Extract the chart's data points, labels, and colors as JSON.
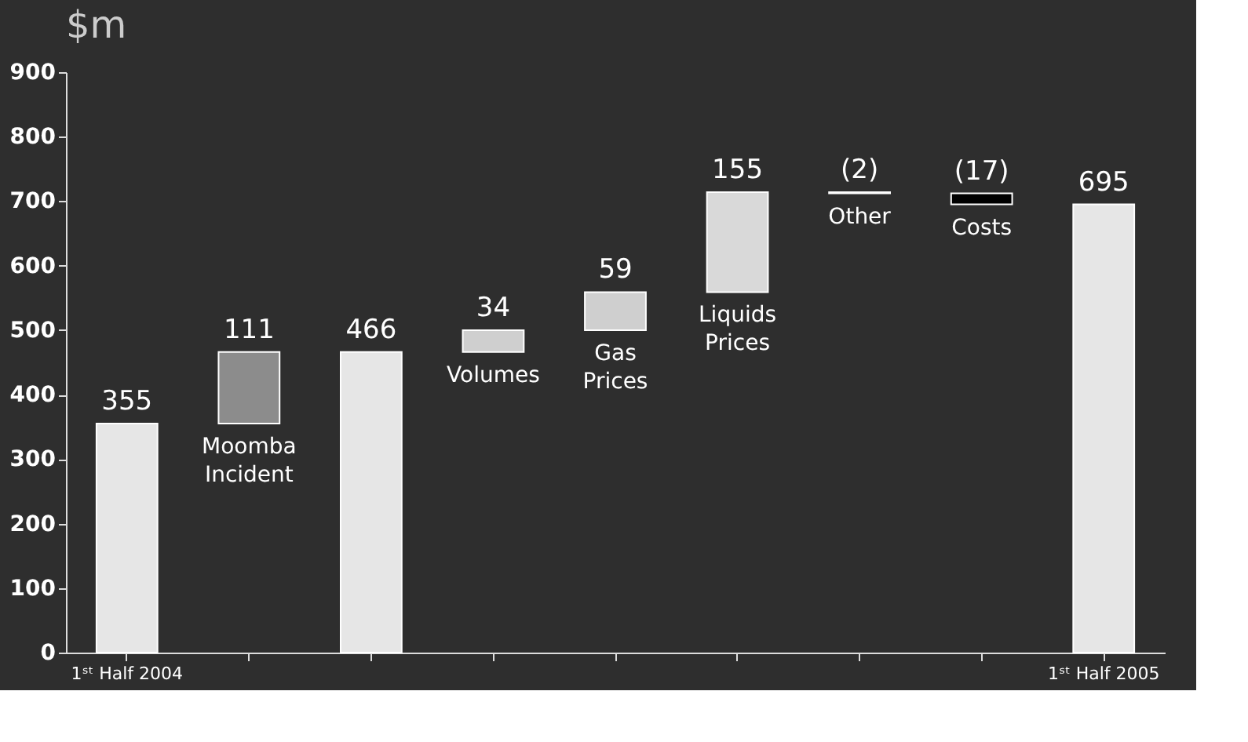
{
  "chart_data": {
    "type": "bar",
    "title": "$m",
    "categories": [
      "1ˢᵗ Half 2004",
      "Moomba Incident",
      null,
      "Volumes",
      "Gas Prices",
      "Liquids Prices",
      "Other",
      "Costs",
      "1ˢᵗ Half 2005"
    ],
    "values": [
      355,
      111,
      466,
      34,
      59,
      155,
      -2,
      -17,
      695
    ],
    "base": [
      0,
      355,
      0,
      466,
      500,
      559,
      714,
      712,
      0
    ],
    "colors": [
      "#e6e6e6",
      "#8c8c8c",
      "#e6e6e6",
      "#cfcfcf",
      "#cfcfcf",
      "#d9d9d9",
      "#f0f0f0",
      "#000000",
      "#e6e6e6"
    ],
    "value_labels": [
      "355",
      "111",
      "466",
      "34",
      "59",
      "155",
      "(2)",
      "(17)",
      "695"
    ],
    "ylim": [
      0,
      900
    ],
    "yticks": [
      0,
      100,
      200,
      300,
      400,
      500,
      600,
      700,
      800,
      900
    ],
    "grid": false
  }
}
